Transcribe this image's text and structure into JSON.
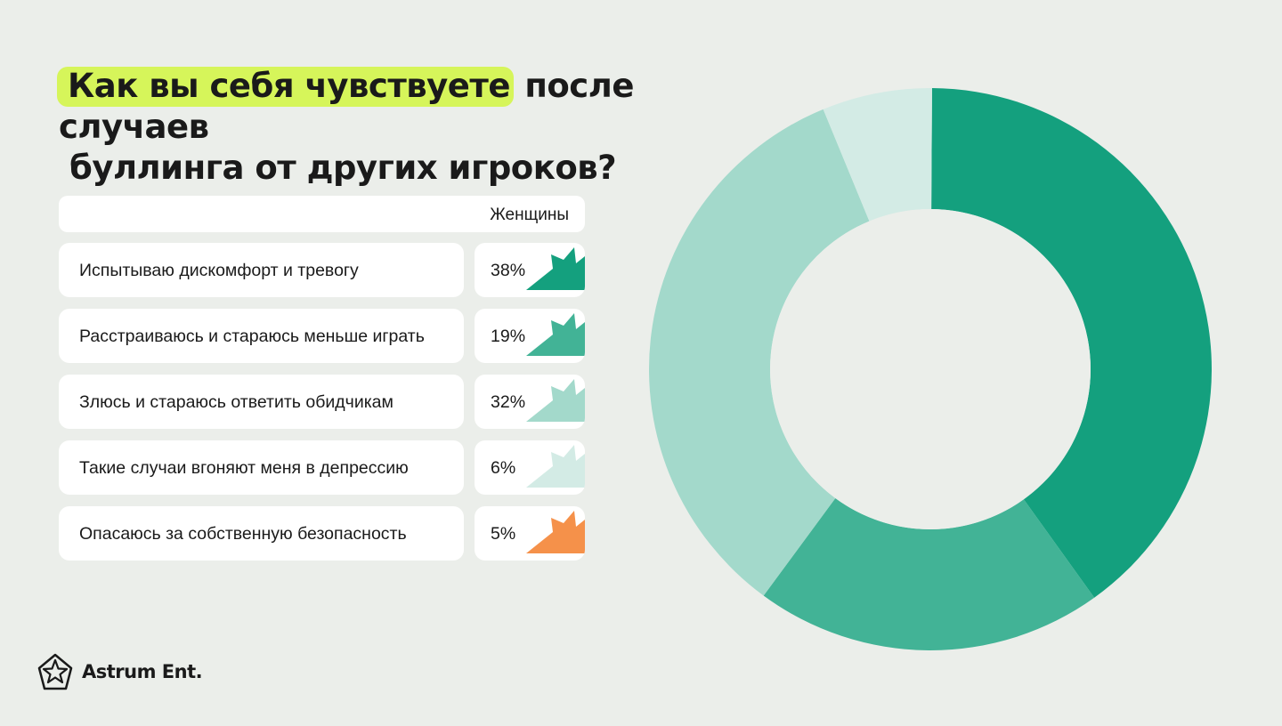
{
  "title": {
    "highlight": "Как вы себя чувствуете",
    "rest_line1": "после случаев",
    "line2": "буллинга от других игроков?"
  },
  "table": {
    "column_header": "Женщины",
    "rows": [
      {
        "label": "Испытываю дискомфорт и тревогу",
        "value_text": "38%",
        "color": "#14a07e"
      },
      {
        "label": "Расстраиваюсь и стараюсь меньше играть",
        "value_text": "19%",
        "color": "#42b396"
      },
      {
        "label": "Злюсь и стараюсь ответить обидчикам",
        "value_text": "32%",
        "color": "#a3d9cb"
      },
      {
        "label": "Такие случаи вгоняют меня в депрессию",
        "value_text": "6%",
        "color": "#d3ebe5"
      },
      {
        "label": "Опасаюсь за собственную безопасность",
        "value_text": "5%",
        "color": "#f5914a"
      }
    ]
  },
  "chart_data": {
    "type": "pie",
    "variant": "donut",
    "series_label": "Женщины",
    "slices": [
      {
        "label": "Испытываю дискомфорт и тревогу",
        "value": 38,
        "color": "#14a07e"
      },
      {
        "label": "Расстраиваюсь и стараюсь меньше играть",
        "value": 19,
        "color": "#42b396"
      },
      {
        "label": "Злюсь и стараюсь ответить обидчикам",
        "value": 32,
        "color": "#a3d9cb"
      },
      {
        "label": "Такие случаи вгоняют меня в депрессию",
        "value": 6,
        "color": "#d3ebe5"
      },
      {
        "label": "Опасаюсь за собственную безопасность",
        "value": 5,
        "color": "#f5914a"
      }
    ]
  },
  "brand": {
    "name": "Astrum Ent."
  }
}
